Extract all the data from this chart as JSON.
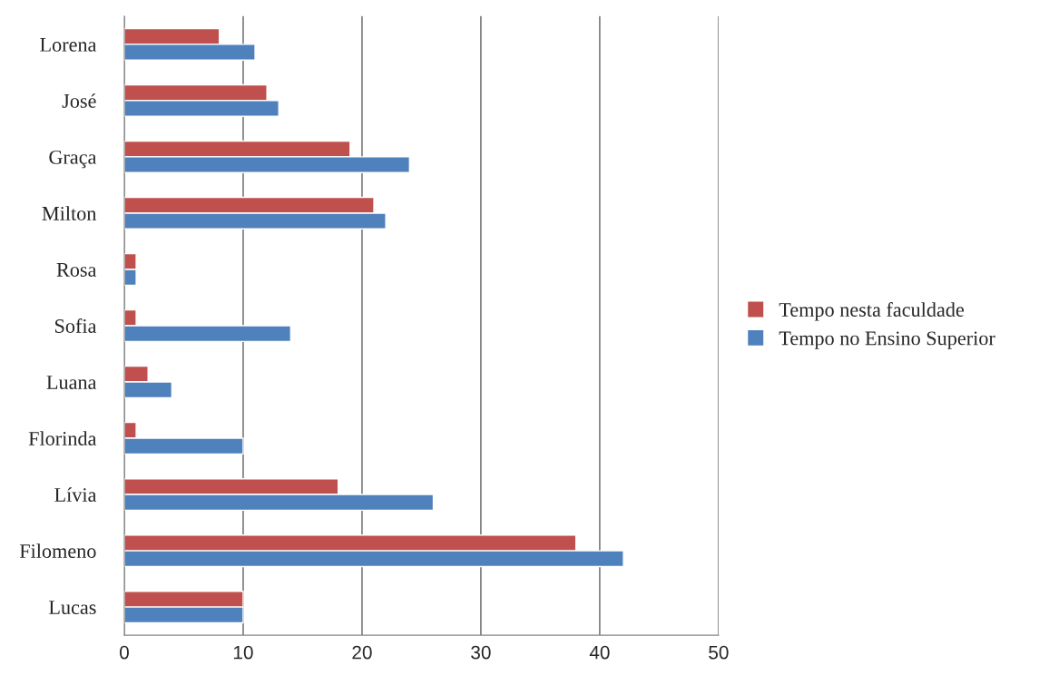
{
  "chart_data": {
    "type": "bar",
    "orientation": "horizontal",
    "categories": [
      "Lorena",
      "José",
      "Graça",
      "Milton",
      "Rosa",
      "Sofia",
      "Luana",
      "Florinda",
      "Lívia",
      "Filomeno",
      "Lucas"
    ],
    "series": [
      {
        "name": "Tempo nesta faculdade",
        "color": "#c0504d",
        "values": [
          8,
          12,
          19,
          21,
          1,
          1,
          2,
          1,
          18,
          38,
          10
        ]
      },
      {
        "name": "Tempo no Ensino Superior",
        "color": "#4f81bd",
        "values": [
          11,
          13,
          24,
          22,
          1,
          14,
          4,
          10,
          26,
          42,
          10
        ]
      }
    ],
    "xlim": [
      0,
      50
    ],
    "xticks": [
      0,
      10,
      20,
      30,
      40,
      50
    ],
    "grid": "x",
    "legend": "right"
  }
}
